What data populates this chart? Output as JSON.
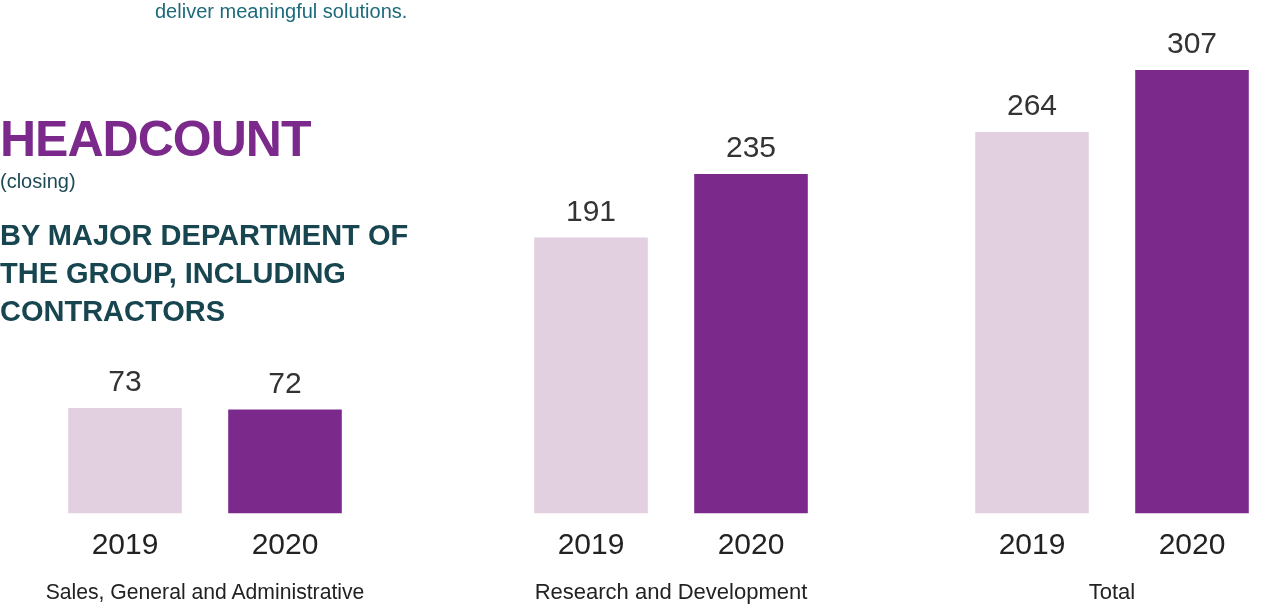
{
  "chart_data": [
    {
      "type": "bar",
      "title": "HEADCOUNT",
      "subtitle": "BY MAJOR DEPARTMENT OF THE GROUP, INCLUDING CONTRACTORS",
      "annotations": [
        "(closing)",
        "deliver meaningful solutions."
      ],
      "categories": [
        "2019",
        "2020"
      ],
      "values": [
        73,
        72
      ],
      "colors": [
        "#e2d0e0",
        "#7b2a8c"
      ],
      "xlabel": "Sales, General and Administrative",
      "data_labels": true,
      "tick_labels": "x",
      "grid": false,
      "legend": false
    },
    {
      "type": "bar",
      "categories": [
        "2019",
        "2020"
      ],
      "values": [
        191,
        235
      ],
      "colors": [
        "#e2d0e0",
        "#7b2a8c"
      ],
      "xlabel": "Research and Development",
      "data_labels": true,
      "tick_labels": "x",
      "grid": false,
      "legend": false
    },
    {
      "type": "bar",
      "categories": [
        "2019",
        "2020"
      ],
      "values": [
        264,
        307
      ],
      "colors": [
        "#e2d0e0",
        "#7b2a8c"
      ],
      "xlabel": "Total",
      "data_labels": true,
      "tick_labels": "x",
      "grid": false,
      "legend": false
    }
  ]
}
